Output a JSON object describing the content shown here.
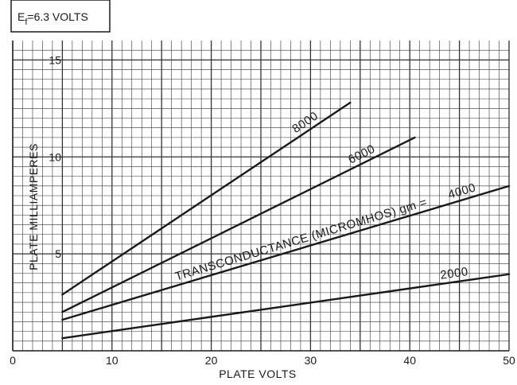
{
  "chart_data": {
    "type": "line",
    "heater_note": {
      "prefix": "E",
      "subscript": "f",
      "value": "=6.3  VOLTS"
    },
    "xlabel": "PLATE VOLTS",
    "ylabel": "PLATE MILLIAMPERES",
    "xlim": [
      0,
      50
    ],
    "ylim": [
      0,
      16
    ],
    "xticks": [
      0,
      10,
      20,
      30,
      40,
      50
    ],
    "xtick_labels": [
      "0",
      "10",
      "20",
      "30",
      "40",
      "50"
    ],
    "yticks": [
      5,
      10,
      15
    ],
    "ytick_labels": [
      "5",
      "10",
      "15"
    ],
    "grid": true,
    "series_prefix_label": "TRANSCONDUCTANCE (MICROMHOS) gm =",
    "series": [
      {
        "name": "8000",
        "x": [
          5,
          34
        ],
        "y": [
          2.9,
          12.8
        ]
      },
      {
        "name": "6000",
        "x": [
          5,
          40.5
        ],
        "y": [
          2.0,
          11.0
        ]
      },
      {
        "name": "4000",
        "x": [
          5,
          50
        ],
        "y": [
          1.6,
          8.5
        ]
      },
      {
        "name": "2000",
        "x": [
          5,
          50
        ],
        "y": [
          0.65,
          3.95
        ]
      }
    ],
    "colors": {
      "line": "#1a1a1a",
      "grid": "#333333",
      "background": "#ffffff"
    }
  }
}
